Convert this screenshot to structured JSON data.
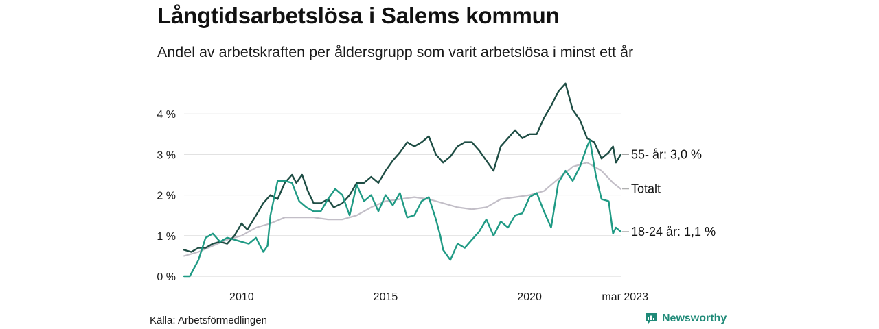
{
  "title": "Långtidsarbetslösa i Salems kommun",
  "subtitle": "Andel av arbetskraften per åldersgrupp som varit arbetslösa i minst ett år",
  "source": "Källa: Arbetsförmedlingen",
  "brand": {
    "name": "Newsworthy",
    "icon": "newsworthy-logo-icon",
    "color": "#1f8a78"
  },
  "chart_data": {
    "type": "line",
    "x_ticks": [
      "2010",
      "2015",
      "2020",
      "mar 2023"
    ],
    "x_tick_values": [
      2010.0,
      2015.0,
      2020.0,
      2023.17
    ],
    "xlim": [
      2008.0,
      2023.17
    ],
    "y_ticks": [
      "0 %",
      "1 %",
      "2 %",
      "3 %",
      "4 %"
    ],
    "y_tick_values": [
      0,
      1,
      2,
      3,
      4
    ],
    "ylim": [
      0,
      4.5
    ],
    "grid": "horizontal",
    "series": [
      {
        "name": "55- år",
        "end_label": "55- år: 3,0 %",
        "color": "#1e4d44",
        "points": [
          [
            2008.0,
            0.65
          ],
          [
            2008.25,
            0.6
          ],
          [
            2008.5,
            0.7
          ],
          [
            2008.75,
            0.7
          ],
          [
            2009.0,
            0.8
          ],
          [
            2009.25,
            0.85
          ],
          [
            2009.5,
            0.8
          ],
          [
            2009.75,
            1.0
          ],
          [
            2010.0,
            1.3
          ],
          [
            2010.2,
            1.15
          ],
          [
            2010.5,
            1.5
          ],
          [
            2010.75,
            1.8
          ],
          [
            2011.0,
            2.0
          ],
          [
            2011.25,
            1.9
          ],
          [
            2011.5,
            2.3
          ],
          [
            2011.75,
            2.5
          ],
          [
            2011.9,
            2.3
          ],
          [
            2012.1,
            2.5
          ],
          [
            2012.3,
            2.1
          ],
          [
            2012.5,
            1.8
          ],
          [
            2012.75,
            1.8
          ],
          [
            2013.0,
            1.9
          ],
          [
            2013.2,
            1.7
          ],
          [
            2013.5,
            1.8
          ],
          [
            2013.75,
            2.0
          ],
          [
            2014.0,
            2.3
          ],
          [
            2014.25,
            2.3
          ],
          [
            2014.5,
            2.45
          ],
          [
            2014.75,
            2.3
          ],
          [
            2015.0,
            2.6
          ],
          [
            2015.25,
            2.85
          ],
          [
            2015.5,
            3.05
          ],
          [
            2015.75,
            3.3
          ],
          [
            2016.0,
            3.2
          ],
          [
            2016.25,
            3.3
          ],
          [
            2016.5,
            3.45
          ],
          [
            2016.75,
            3.0
          ],
          [
            2017.0,
            2.8
          ],
          [
            2017.25,
            2.95
          ],
          [
            2017.5,
            3.2
          ],
          [
            2017.75,
            3.3
          ],
          [
            2018.0,
            3.3
          ],
          [
            2018.25,
            3.1
          ],
          [
            2018.5,
            2.85
          ],
          [
            2018.75,
            2.6
          ],
          [
            2019.0,
            3.2
          ],
          [
            2019.25,
            3.4
          ],
          [
            2019.5,
            3.6
          ],
          [
            2019.75,
            3.4
          ],
          [
            2020.0,
            3.5
          ],
          [
            2020.25,
            3.5
          ],
          [
            2020.5,
            3.9
          ],
          [
            2020.75,
            4.2
          ],
          [
            2021.0,
            4.55
          ],
          [
            2021.25,
            4.75
          ],
          [
            2021.5,
            4.1
          ],
          [
            2021.75,
            3.85
          ],
          [
            2022.0,
            3.4
          ],
          [
            2022.25,
            3.3
          ],
          [
            2022.5,
            2.9
          ],
          [
            2022.75,
            3.05
          ],
          [
            2022.9,
            3.2
          ],
          [
            2023.0,
            2.8
          ],
          [
            2023.17,
            3.0
          ]
        ]
      },
      {
        "name": "Totalt",
        "end_label": "Totalt",
        "color": "#c2bec7",
        "points": [
          [
            2008.0,
            0.5
          ],
          [
            2008.5,
            0.6
          ],
          [
            2009.0,
            0.75
          ],
          [
            2009.5,
            0.9
          ],
          [
            2010.0,
            1.0
          ],
          [
            2010.5,
            1.2
          ],
          [
            2011.0,
            1.3
          ],
          [
            2011.5,
            1.45
          ],
          [
            2012.0,
            1.45
          ],
          [
            2012.5,
            1.45
          ],
          [
            2013.0,
            1.4
          ],
          [
            2013.5,
            1.4
          ],
          [
            2014.0,
            1.5
          ],
          [
            2014.5,
            1.7
          ],
          [
            2015.0,
            1.85
          ],
          [
            2015.5,
            1.9
          ],
          [
            2016.0,
            1.95
          ],
          [
            2016.5,
            1.9
          ],
          [
            2017.0,
            1.8
          ],
          [
            2017.5,
            1.7
          ],
          [
            2018.0,
            1.65
          ],
          [
            2018.5,
            1.7
          ],
          [
            2019.0,
            1.9
          ],
          [
            2019.5,
            1.95
          ],
          [
            2020.0,
            2.0
          ],
          [
            2020.5,
            2.1
          ],
          [
            2021.0,
            2.4
          ],
          [
            2021.5,
            2.7
          ],
          [
            2022.0,
            2.8
          ],
          [
            2022.5,
            2.6
          ],
          [
            2022.9,
            2.3
          ],
          [
            2023.17,
            2.15
          ]
        ]
      },
      {
        "name": "18-24 år",
        "end_label": "18-24 år: 1,1 %",
        "color": "#1f9a84",
        "points": [
          [
            2008.0,
            0.0
          ],
          [
            2008.2,
            0.0
          ],
          [
            2008.5,
            0.4
          ],
          [
            2008.75,
            0.95
          ],
          [
            2009.0,
            1.05
          ],
          [
            2009.25,
            0.85
          ],
          [
            2009.5,
            0.95
          ],
          [
            2009.75,
            0.9
          ],
          [
            2010.0,
            0.85
          ],
          [
            2010.25,
            0.8
          ],
          [
            2010.5,
            0.95
          ],
          [
            2010.75,
            0.6
          ],
          [
            2010.9,
            0.75
          ],
          [
            2011.0,
            1.5
          ],
          [
            2011.25,
            2.35
          ],
          [
            2011.5,
            2.35
          ],
          [
            2011.75,
            2.3
          ],
          [
            2012.0,
            1.85
          ],
          [
            2012.25,
            1.7
          ],
          [
            2012.5,
            1.6
          ],
          [
            2012.75,
            1.6
          ],
          [
            2013.0,
            1.9
          ],
          [
            2013.25,
            2.15
          ],
          [
            2013.5,
            2.0
          ],
          [
            2013.75,
            1.5
          ],
          [
            2014.0,
            2.25
          ],
          [
            2014.25,
            1.85
          ],
          [
            2014.5,
            2.0
          ],
          [
            2014.75,
            1.6
          ],
          [
            2015.0,
            2.0
          ],
          [
            2015.25,
            1.75
          ],
          [
            2015.5,
            2.05
          ],
          [
            2015.75,
            1.45
          ],
          [
            2016.0,
            1.5
          ],
          [
            2016.25,
            1.85
          ],
          [
            2016.5,
            1.95
          ],
          [
            2016.75,
            1.4
          ],
          [
            2016.9,
            1.0
          ],
          [
            2017.0,
            0.65
          ],
          [
            2017.25,
            0.4
          ],
          [
            2017.5,
            0.8
          ],
          [
            2017.75,
            0.7
          ],
          [
            2018.0,
            0.9
          ],
          [
            2018.25,
            1.1
          ],
          [
            2018.5,
            1.4
          ],
          [
            2018.75,
            1.0
          ],
          [
            2019.0,
            1.35
          ],
          [
            2019.25,
            1.2
          ],
          [
            2019.5,
            1.5
          ],
          [
            2019.75,
            1.55
          ],
          [
            2020.0,
            1.95
          ],
          [
            2020.25,
            2.05
          ],
          [
            2020.5,
            1.6
          ],
          [
            2020.75,
            1.2
          ],
          [
            2021.0,
            2.3
          ],
          [
            2021.25,
            2.6
          ],
          [
            2021.5,
            2.35
          ],
          [
            2021.75,
            2.7
          ],
          [
            2022.0,
            3.2
          ],
          [
            2022.1,
            3.35
          ],
          [
            2022.3,
            2.5
          ],
          [
            2022.5,
            1.9
          ],
          [
            2022.75,
            1.85
          ],
          [
            2022.9,
            1.05
          ],
          [
            2023.0,
            1.2
          ],
          [
            2023.17,
            1.1
          ]
        ]
      }
    ]
  }
}
